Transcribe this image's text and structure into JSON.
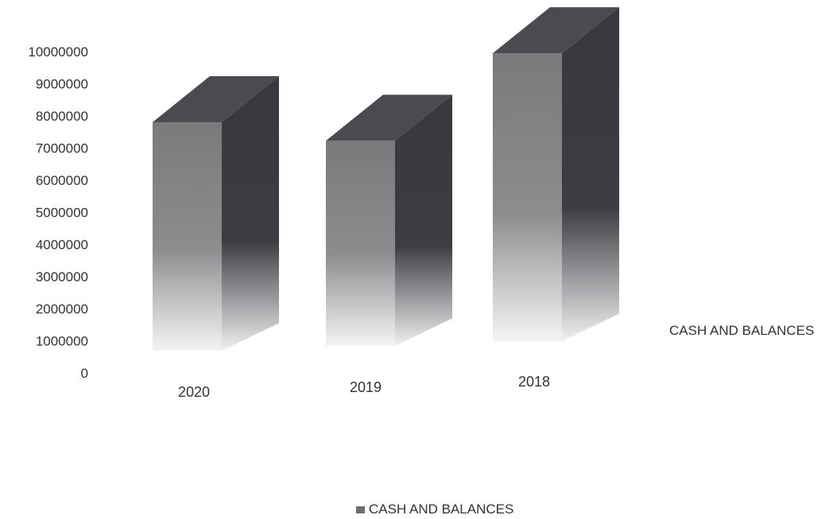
{
  "chart_data": {
    "type": "bar",
    "style": "3d-column",
    "categories": [
      "2020",
      "2019",
      "2018"
    ],
    "series": [
      {
        "name": "CASH AND BALANCES",
        "values": [
          7700000,
          7100000,
          9800000
        ]
      }
    ],
    "y_ticks": [
      "0",
      "1000000",
      "2000000",
      "3000000",
      "4000000",
      "5000000",
      "6000000",
      "7000000",
      "8000000",
      "9000000",
      "10000000"
    ],
    "ylim": [
      0,
      10000000
    ],
    "series_axis_label": "CASH AND BALANCES",
    "legend": {
      "position": "bottom",
      "label": "CASH AND BALANCES"
    },
    "colors": {
      "front_top": "#7a7a7c",
      "front_bottom": "#f2f2f4",
      "side": "#3a3a40",
      "top": "#4a4a50",
      "legend_swatch": "#6e6e74"
    }
  }
}
